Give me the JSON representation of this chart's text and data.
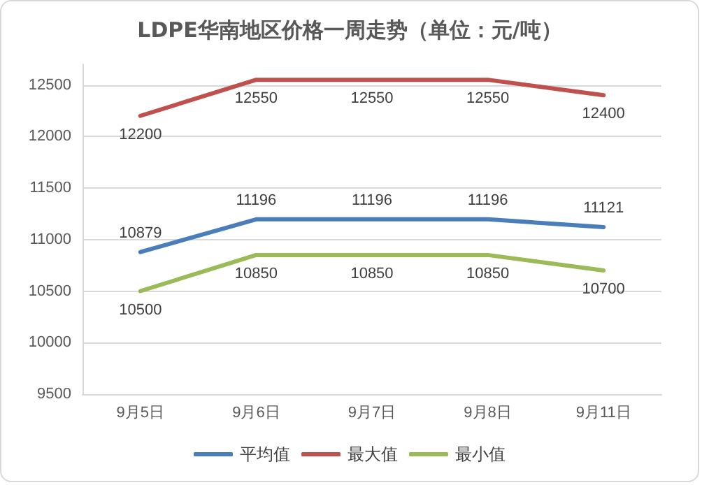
{
  "chart_data": {
    "type": "line",
    "title": "LDPE华南地区价格一周走势（单位：元/吨）",
    "categories": [
      "9月5日",
      "9月6日",
      "9月7日",
      "9月8日",
      "9月11日"
    ],
    "series": [
      {
        "name": "平均值",
        "color": "#4a7ebb",
        "values": [
          10879,
          11196,
          11196,
          11196,
          11121
        ]
      },
      {
        "name": "最大值",
        "color": "#c0504d",
        "values": [
          12200,
          12550,
          12550,
          12550,
          12400
        ]
      },
      {
        "name": "最小值",
        "color": "#9bbb59",
        "values": [
          10500,
          10850,
          10850,
          10850,
          10700
        ]
      }
    ],
    "ylim": [
      9500,
      12700
    ],
    "yticks": [
      9500,
      10000,
      10500,
      11000,
      11500,
      12000,
      12500
    ],
    "grid": "y",
    "legend": "bottom",
    "marker": "none",
    "line_style": "solid",
    "data_labels": true
  }
}
